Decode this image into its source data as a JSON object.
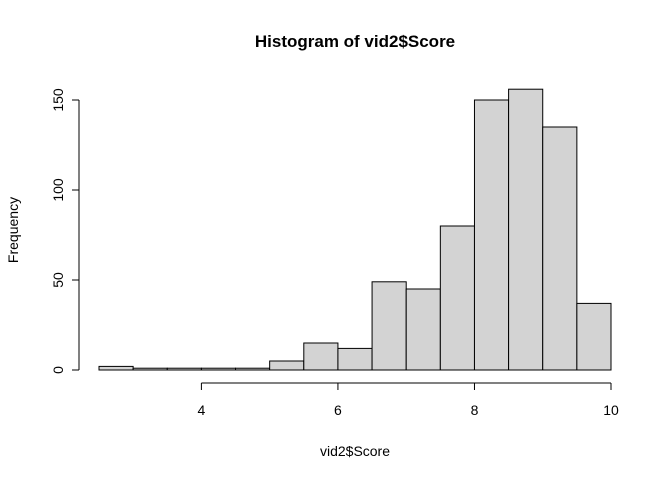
{
  "chart_data": {
    "type": "bar",
    "title": "Histogram of vid2$Score",
    "xlabel": "vid2$Score",
    "ylabel": "Frequency",
    "bin_width": 0.5,
    "bins": [
      {
        "start": 2.5,
        "end": 3.0,
        "count": 2
      },
      {
        "start": 3.0,
        "end": 3.5,
        "count": 1
      },
      {
        "start": 3.5,
        "end": 4.0,
        "count": 1
      },
      {
        "start": 4.0,
        "end": 4.5,
        "count": 1
      },
      {
        "start": 4.5,
        "end": 5.0,
        "count": 1
      },
      {
        "start": 5.0,
        "end": 5.5,
        "count": 5
      },
      {
        "start": 5.5,
        "end": 6.0,
        "count": 15
      },
      {
        "start": 6.0,
        "end": 6.5,
        "count": 12
      },
      {
        "start": 6.5,
        "end": 7.0,
        "count": 49
      },
      {
        "start": 7.0,
        "end": 7.5,
        "count": 45
      },
      {
        "start": 7.5,
        "end": 8.0,
        "count": 80
      },
      {
        "start": 8.0,
        "end": 8.5,
        "count": 150
      },
      {
        "start": 8.5,
        "end": 9.0,
        "count": 156
      },
      {
        "start": 9.0,
        "end": 9.5,
        "count": 135
      },
      {
        "start": 9.5,
        "end": 10.0,
        "count": 37
      }
    ],
    "xlim": [
      2.5,
      10
    ],
    "ylim": [
      0,
      160
    ],
    "x_ticks": [
      4,
      6,
      8,
      10
    ],
    "y_ticks": [
      0,
      50,
      100,
      150
    ],
    "bar_color": "#d3d3d3",
    "grid": false,
    "legend": "none"
  }
}
